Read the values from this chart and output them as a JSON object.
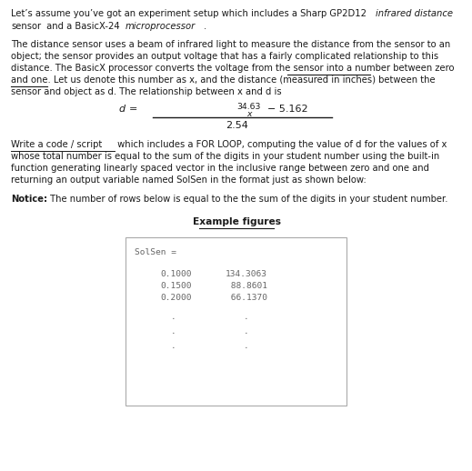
{
  "bg_color": "#ffffff",
  "text_color": "#1a1a1a",
  "font_size_body": 7.2,
  "font_size_mono": 6.8,
  "font_size_formula": 8.0,
  "line1_normal": "Let’s assume you’ve got an experiment setup which includes a Sharp GP2D12 ",
  "line1_italic": "infrared distance",
  "line2_normal": "sensor",
  "line2_italic": " and a BasicX-24 ",
  "line2_italic2": "microprocessor",
  "line2_end": ".",
  "para1_lines": [
    "The distance sensor uses a beam of infrared light to measure the distance from the sensor to an",
    "object; the sensor provides an output voltage that has a fairly complicated relationship to this",
    "distance. The BasicX processor converts the voltage from the sensor into a number between zero",
    "and one. Let us denote this number as x, and the distance (measured in inches) between the",
    "sensor and object as d. The relationship between x and d is"
  ],
  "underline_between_zero": {
    "line": 2,
    "text": "between zero"
  },
  "underline_and_one": {
    "line": 3,
    "text": "and one"
  },
  "para2_underline": "Write a code / script",
  "para2_line1_rest": " which includes a FOR LOOP, computing the value of d for the values of x",
  "para2_lines": [
    "whose total number is equal to the sum of the digits in your student number using the built-in",
    "function generating linearly spaced vector in the inclusive range between zero and one and",
    "returning an output variable named SolSen in the format just as shown below:"
  ],
  "notice_bold": "Notice:",
  "notice_rest": " The number of rows below is equal to the the sum of the digits in your student number.",
  "example_title": "Example figures",
  "box_header": "SolSen =",
  "col1": [
    "0.1000",
    "0.1500",
    "0.2000"
  ],
  "col2": [
    "134.3063",
    " 88.8601",
    " 66.1370"
  ],
  "dots_count": 3,
  "box_border_color": "#aaaaaa",
  "mono_text_color": "#666666"
}
